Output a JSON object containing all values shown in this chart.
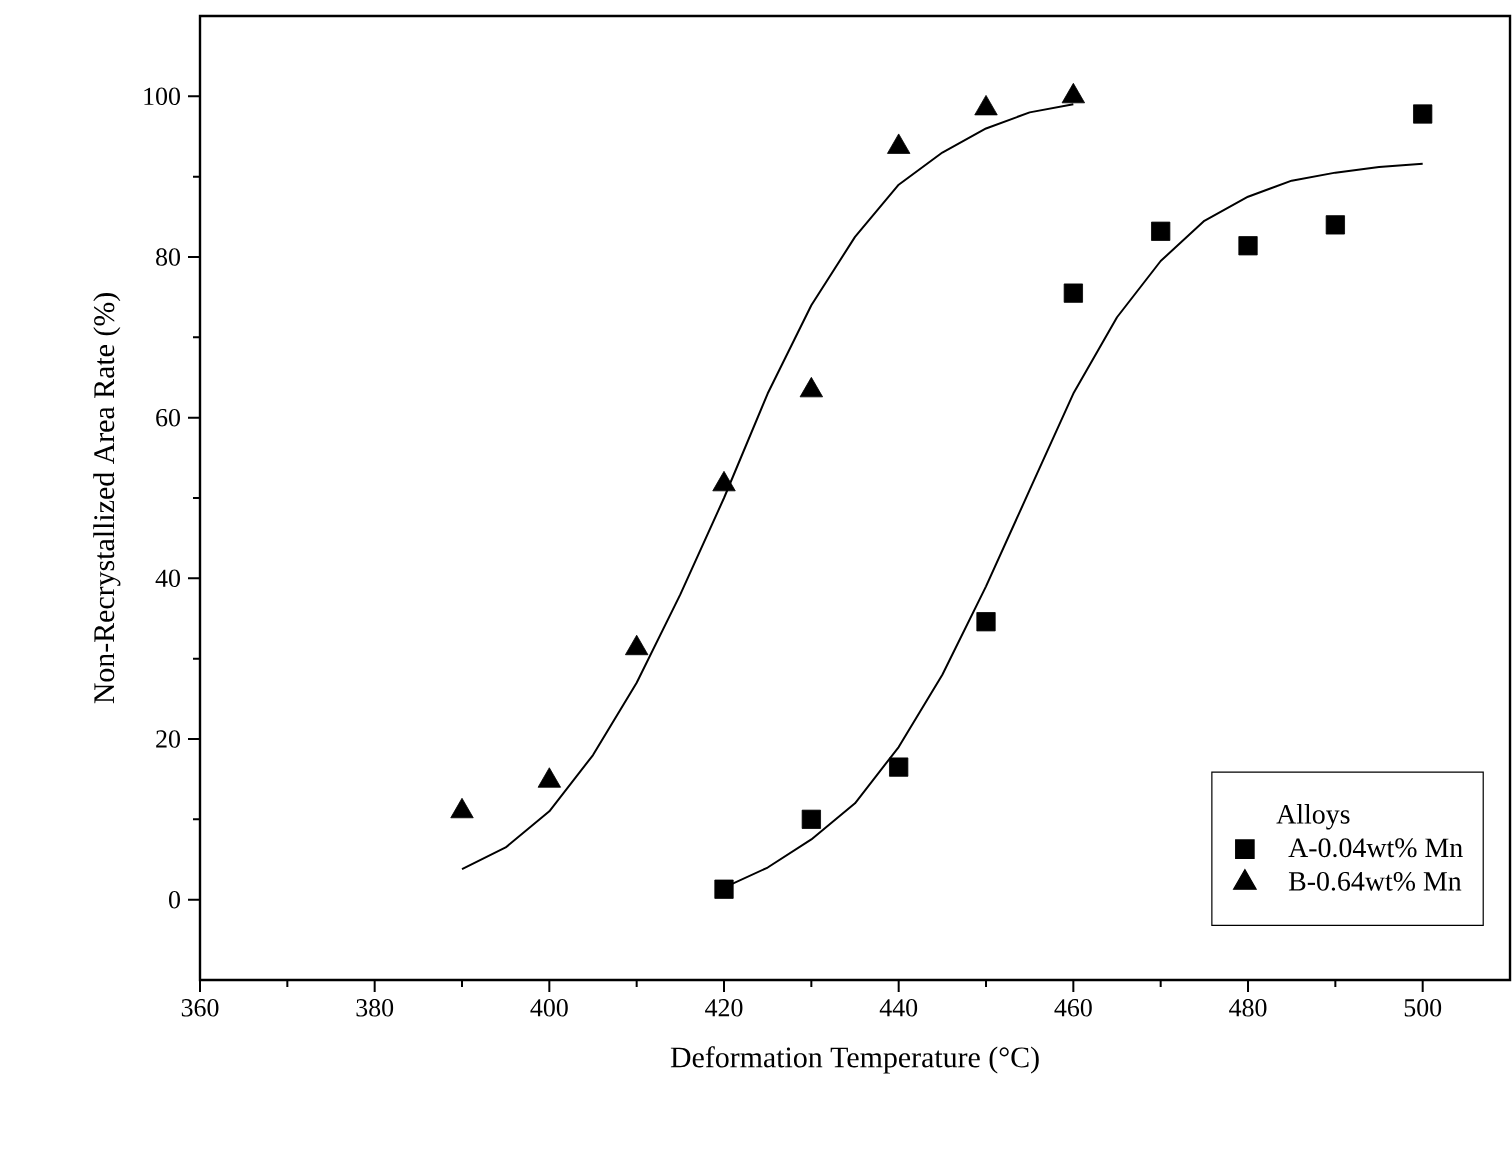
{
  "chart_data": {
    "type": "scatter",
    "xlabel": "Deformation Temperature (°C)",
    "ylabel": "Non-Recrystallized Area Rate (%)",
    "legend_title": "Alloys",
    "legend": "bottom right",
    "grid": false,
    "xlim": [
      360,
      510
    ],
    "ylim": [
      -10,
      110
    ],
    "xticks": [
      360,
      380,
      400,
      420,
      440,
      460,
      480,
      500
    ],
    "yticks": [
      0,
      20,
      40,
      60,
      80,
      100
    ],
    "series": [
      {
        "name": "A-0.04wt% Mn",
        "marker": "square",
        "color": "#000000",
        "x": [
          420,
          430,
          440,
          450,
          460,
          470,
          480,
          490,
          500
        ],
        "values": [
          1.3,
          10,
          16.5,
          34.6,
          75.5,
          83.2,
          81.4,
          84,
          97.8
        ]
      },
      {
        "name": "B-0.64wt% Mn",
        "marker": "triangle",
        "color": "#000000",
        "x": [
          390,
          400,
          410,
          420,
          430,
          440,
          450,
          460
        ],
        "values": [
          11,
          14.8,
          31.3,
          51.7,
          63.4,
          93.7,
          98.5,
          100
        ]
      },
      {
        "type": "line",
        "marker": "none",
        "color": "#000000",
        "x": [
          420,
          425,
          430,
          435,
          440,
          445,
          450,
          455,
          460,
          465,
          470,
          475,
          480,
          485,
          490,
          495,
          500
        ],
        "values": [
          1.5,
          4,
          7.5,
          12,
          19,
          28,
          39,
          51,
          63,
          72.5,
          79.5,
          84.5,
          87.5,
          89.5,
          90.5,
          91.2,
          91.6
        ]
      },
      {
        "type": "line",
        "marker": "none",
        "color": "#000000",
        "x": [
          390,
          395,
          400,
          405,
          410,
          415,
          420,
          425,
          430,
          435,
          440,
          445,
          450,
          455,
          460
        ],
        "values": [
          3.8,
          6.5,
          11,
          18,
          27,
          38,
          50,
          63,
          74,
          82.5,
          89,
          93,
          96,
          98,
          99
        ]
      }
    ]
  }
}
